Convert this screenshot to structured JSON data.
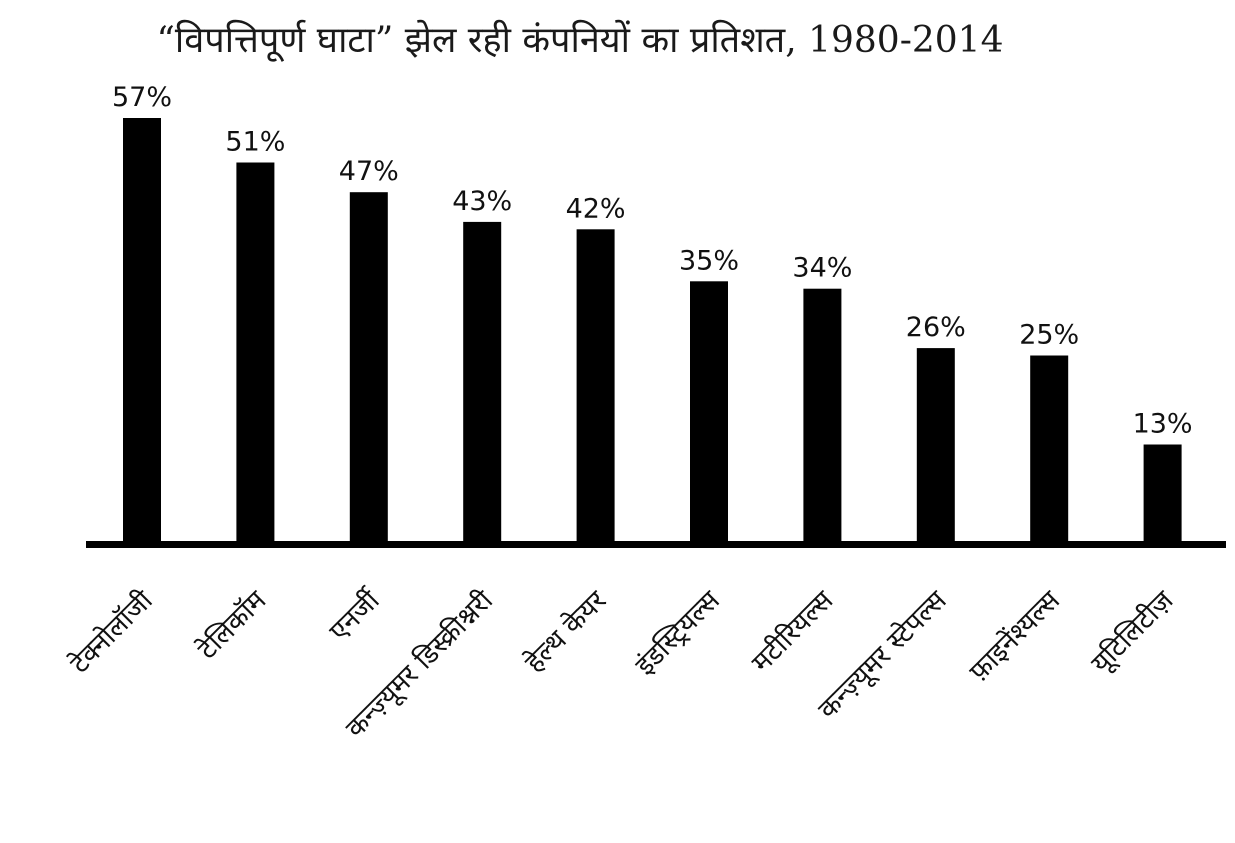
{
  "chart_data": {
    "type": "bar",
    "title": "“विपत्तिपूर्ण घाटा” झेल रही कंपनियों का प्रतिशत, 1980-2014",
    "categories": [
      "टेक्नोलॉजी",
      "टेलिकॉम",
      "एनर्जी",
      "कन्ज़्यूमर डिस्क्रीश्नरी",
      "हेल्थ केयर",
      "इंडस्ट्रियल्स",
      "मटीरियल्स",
      "कन्ज़्यूमर स्टेपल्स",
      "फ़ाइनेंश्यल्स",
      "यूटिलिटीज़"
    ],
    "values": [
      57,
      51,
      47,
      43,
      42,
      35,
      34,
      26,
      25,
      13
    ],
    "value_labels": [
      "57%",
      "51%",
      "47%",
      "43%",
      "42%",
      "35%",
      "34%",
      "26%",
      "25%",
      "13%"
    ],
    "ylim": [
      0,
      57
    ],
    "grid": false,
    "bar_color": "#000000",
    "axis_color": "#000000"
  }
}
